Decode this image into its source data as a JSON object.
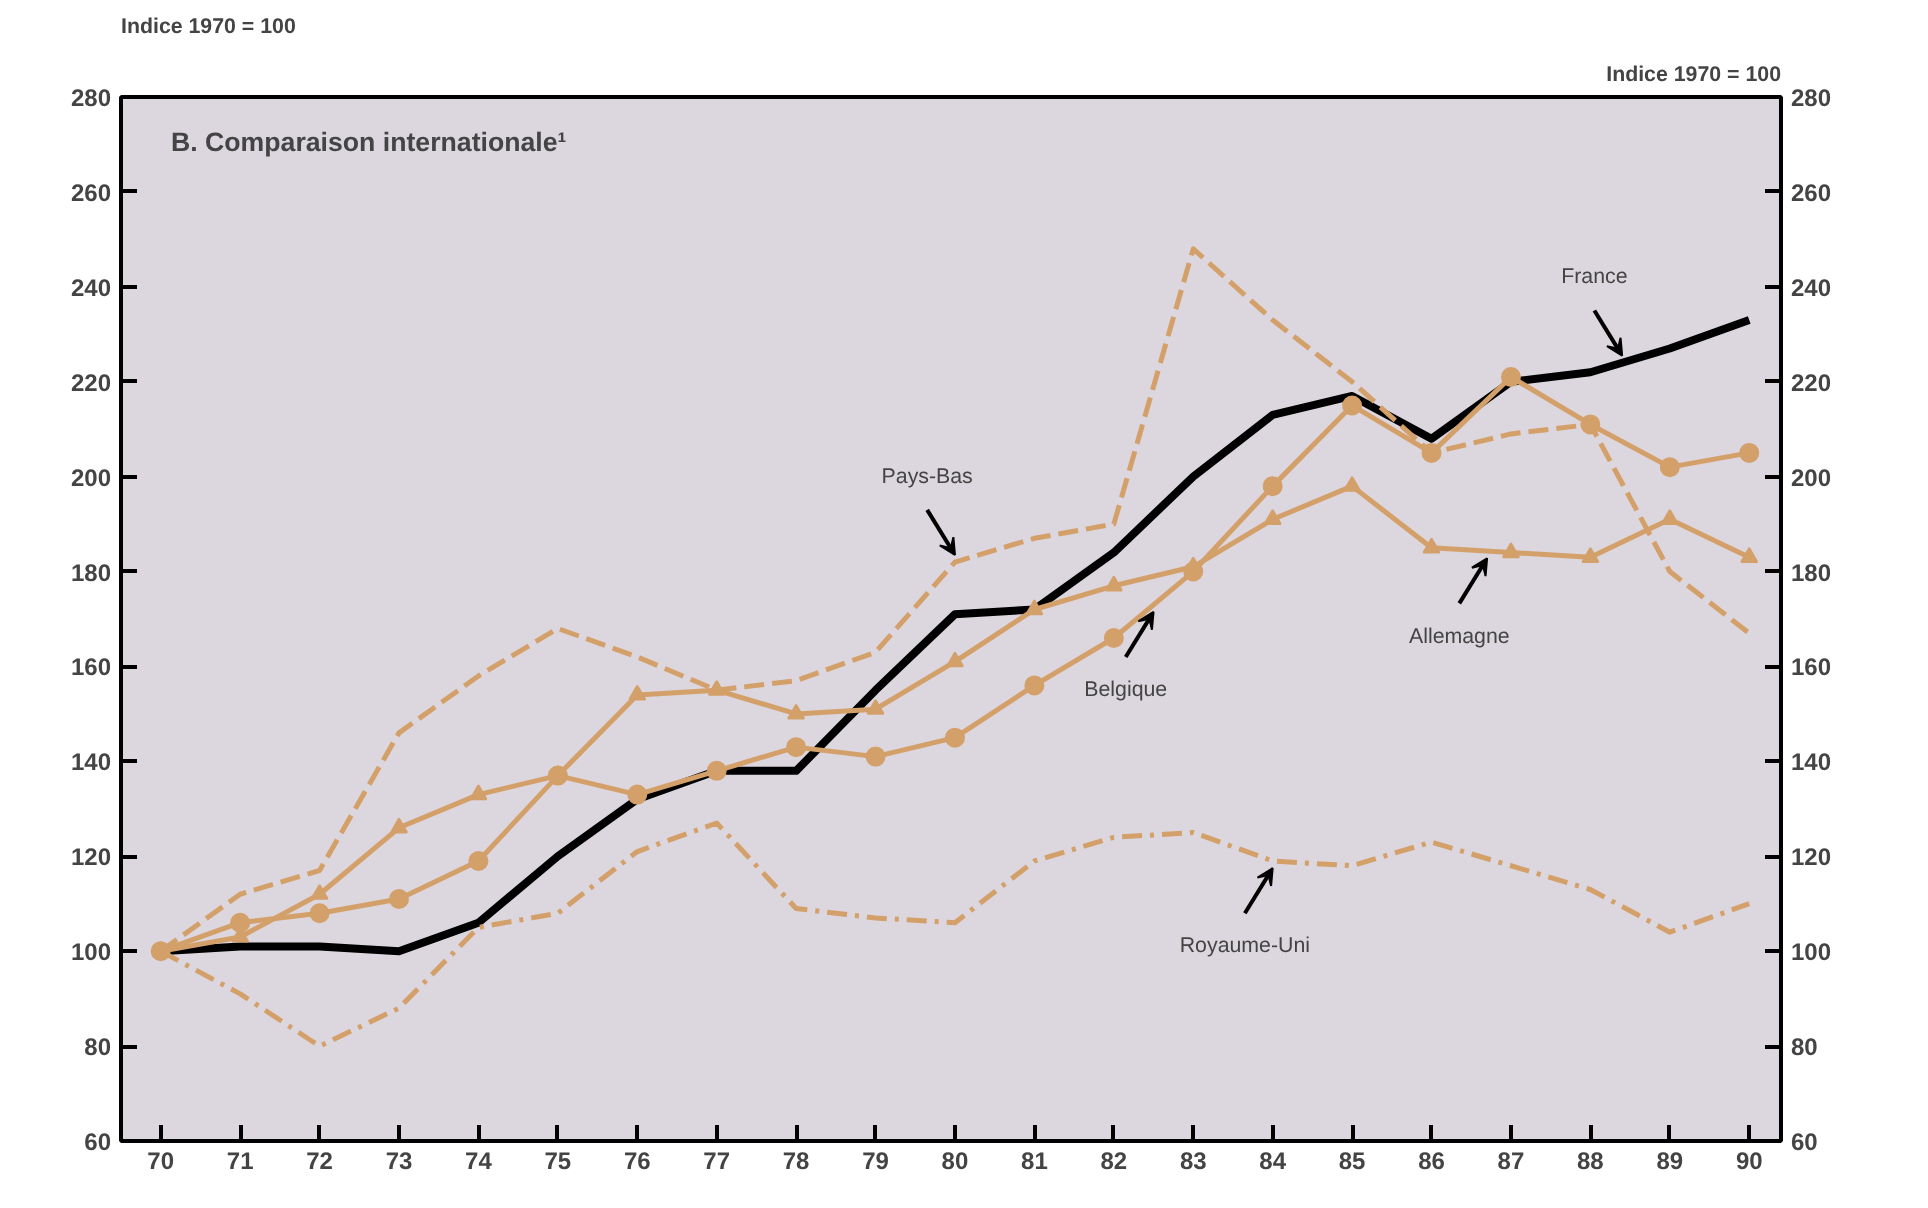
{
  "chart_data": {
    "type": "line",
    "title": "B. Comparaison internationale¹",
    "ylabel": "Indice 1970 = 100",
    "y2label": "Indice 1970 = 100",
    "x": [
      70,
      71,
      72,
      73,
      74,
      75,
      76,
      77,
      78,
      79,
      80,
      81,
      82,
      83,
      84,
      85,
      86,
      87,
      88,
      89,
      90
    ],
    "xlim": [
      69.5,
      90.4
    ],
    "xticks": [
      70,
      71,
      72,
      73,
      74,
      75,
      76,
      77,
      78,
      79,
      80,
      81,
      82,
      83,
      84,
      85,
      86,
      87,
      88,
      89,
      90
    ],
    "ylim": [
      60,
      280
    ],
    "yticks": [
      60,
      80,
      100,
      120,
      140,
      160,
      180,
      200,
      220,
      240,
      260,
      280
    ],
    "y2lim": [
      60,
      280
    ],
    "y2ticks": [
      60,
      80,
      100,
      120,
      140,
      160,
      180,
      200,
      220,
      240,
      260,
      280
    ],
    "grid": false,
    "series": [
      {
        "color": "#000000",
        "line_style": "solid",
        "marker": "none",
        "values": [
          100,
          101,
          101,
          100,
          106,
          120,
          132,
          138,
          138,
          155,
          171,
          172,
          184,
          200,
          213,
          217,
          208,
          220,
          222,
          227,
          233
        ]
      },
      {
        "color": "#d4a06a",
        "line_style": "dashed",
        "marker": "none",
        "values": [
          100,
          112,
          117,
          146,
          158,
          168,
          162,
          155,
          157,
          163,
          182,
          187,
          190,
          248,
          233,
          220,
          205,
          209,
          211,
          180,
          167
        ]
      },
      {
        "color": "#d4a06a",
        "line_style": "solid",
        "marker": "circle",
        "values": [
          100,
          106,
          108,
          111,
          119,
          137,
          133,
          138,
          143,
          141,
          145,
          156,
          166,
          180,
          198,
          215,
          205,
          221,
          211,
          202,
          205
        ]
      },
      {
        "color": "#d4a06a",
        "line_style": "solid",
        "marker": "triangle",
        "values": [
          100,
          103,
          112,
          126,
          133,
          137,
          154,
          155,
          150,
          151,
          161,
          172,
          177,
          181,
          191,
          198,
          185,
          184,
          183,
          191,
          183
        ]
      },
      {
        "color": "#d4a06a",
        "line_style": "dashdot",
        "marker": "none",
        "values": [
          100,
          91,
          80,
          88,
          105,
          108,
          121,
          127,
          109,
          107,
          106,
          119,
          124,
          125,
          119,
          118,
          123,
          118,
          113,
          104,
          110
        ]
      }
    ],
    "annotations": [
      {
        "text": "France",
        "x": 88.4,
        "y": 224
      },
      {
        "text": "Pays-Bas",
        "x": 80,
        "y": 182
      },
      {
        "text": "Belgique",
        "x": 82.5,
        "y": 173
      },
      {
        "text": "Allemagne",
        "x": 86.7,
        "y": 184.3
      },
      {
        "text": "Royaume-Uni",
        "x": 84,
        "y": 119
      }
    ]
  }
}
